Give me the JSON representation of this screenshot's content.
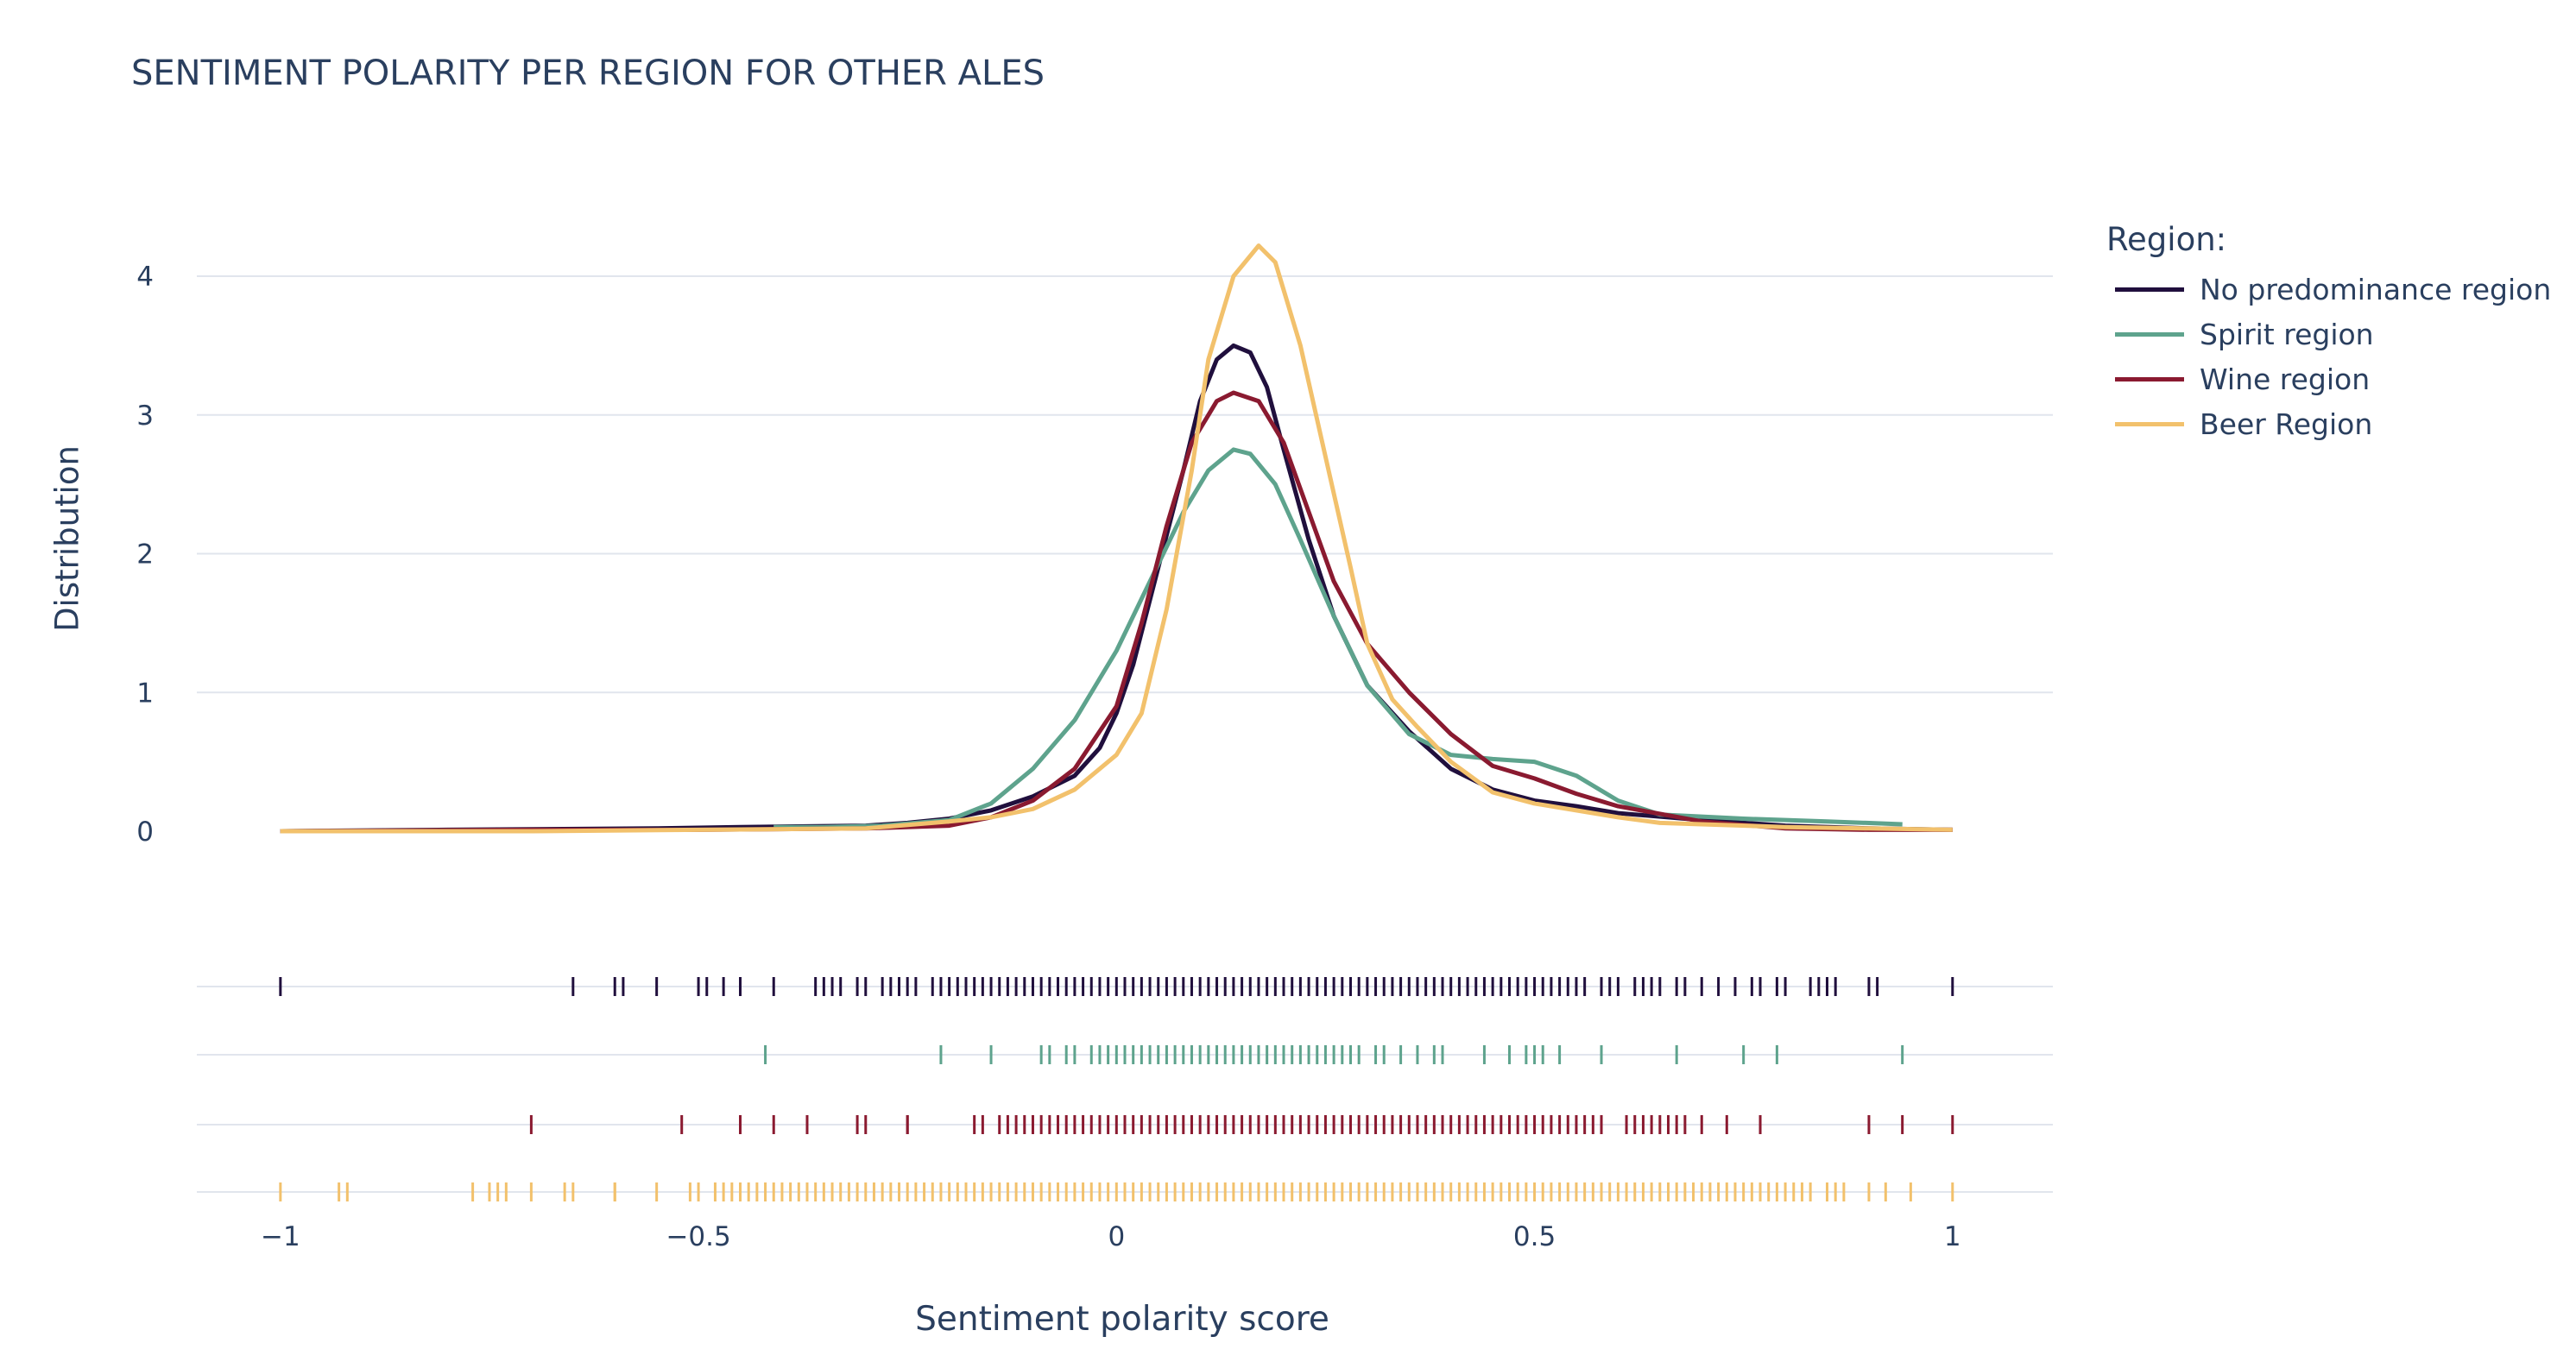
{
  "chart_data": {
    "type": "line",
    "title": "SENTIMENT POLARITY PER REGION FOR OTHER ALES",
    "xlabel": "Sentiment polarity score",
    "ylabel": "Distribution",
    "xlim": [
      -1.1,
      1.12
    ],
    "ylim": [
      -0.45,
      4.4
    ],
    "x_ticks": [
      -1,
      -0.5,
      0,
      0.5,
      1
    ],
    "x_tick_labels": [
      "−1",
      "−0.5",
      "0",
      "0.5",
      "1"
    ],
    "y_ticks": [
      0,
      1,
      2,
      3,
      4
    ],
    "y_tick_labels": [
      "0",
      "1",
      "2",
      "3",
      "4"
    ],
    "grid": true,
    "legend_title": "Region:",
    "legend_position": "top-right",
    "series": [
      {
        "name": "No predominance region",
        "color": "#200f3d",
        "points": [
          [
            -1,
            0.0
          ],
          [
            -0.8,
            0.01
          ],
          [
            -0.55,
            0.02
          ],
          [
            -0.45,
            0.03
          ],
          [
            -0.3,
            0.04
          ],
          [
            -0.25,
            0.06
          ],
          [
            -0.2,
            0.09
          ],
          [
            -0.15,
            0.15
          ],
          [
            -0.1,
            0.25
          ],
          [
            -0.05,
            0.4
          ],
          [
            -0.02,
            0.6
          ],
          [
            0,
            0.85
          ],
          [
            0.02,
            1.2
          ],
          [
            0.05,
            1.9
          ],
          [
            0.08,
            2.6
          ],
          [
            0.1,
            3.1
          ],
          [
            0.12,
            3.4
          ],
          [
            0.14,
            3.5
          ],
          [
            0.16,
            3.45
          ],
          [
            0.18,
            3.2
          ],
          [
            0.2,
            2.75
          ],
          [
            0.23,
            2.1
          ],
          [
            0.26,
            1.55
          ],
          [
            0.3,
            1.05
          ],
          [
            0.35,
            0.72
          ],
          [
            0.4,
            0.45
          ],
          [
            0.45,
            0.3
          ],
          [
            0.5,
            0.22
          ],
          [
            0.55,
            0.18
          ],
          [
            0.6,
            0.13
          ],
          [
            0.7,
            0.08
          ],
          [
            0.8,
            0.04
          ],
          [
            0.9,
            0.02
          ],
          [
            1,
            0.01
          ]
        ]
      },
      {
        "name": "Spirit region",
        "color": "#5ea38d",
        "points": [
          [
            -0.41,
            0.03
          ],
          [
            -0.35,
            0.03
          ],
          [
            -0.28,
            0.04
          ],
          [
            -0.2,
            0.08
          ],
          [
            -0.15,
            0.2
          ],
          [
            -0.1,
            0.45
          ],
          [
            -0.05,
            0.8
          ],
          [
            0,
            1.3
          ],
          [
            0.04,
            1.8
          ],
          [
            0.08,
            2.3
          ],
          [
            0.11,
            2.6
          ],
          [
            0.14,
            2.75
          ],
          [
            0.16,
            2.72
          ],
          [
            0.19,
            2.5
          ],
          [
            0.22,
            2.1
          ],
          [
            0.26,
            1.55
          ],
          [
            0.3,
            1.05
          ],
          [
            0.35,
            0.7
          ],
          [
            0.4,
            0.55
          ],
          [
            0.45,
            0.52
          ],
          [
            0.5,
            0.5
          ],
          [
            0.55,
            0.4
          ],
          [
            0.6,
            0.22
          ],
          [
            0.65,
            0.12
          ],
          [
            0.75,
            0.09
          ],
          [
            0.85,
            0.07
          ],
          [
            0.94,
            0.05
          ]
        ]
      },
      {
        "name": "Wine region",
        "color": "#8a1a30",
        "points": [
          [
            -1,
            0.0
          ],
          [
            -0.7,
            0.01
          ],
          [
            -0.5,
            0.01
          ],
          [
            -0.3,
            0.02
          ],
          [
            -0.2,
            0.04
          ],
          [
            -0.15,
            0.1
          ],
          [
            -0.1,
            0.22
          ],
          [
            -0.05,
            0.45
          ],
          [
            0,
            0.9
          ],
          [
            0.03,
            1.5
          ],
          [
            0.06,
            2.2
          ],
          [
            0.09,
            2.8
          ],
          [
            0.12,
            3.1
          ],
          [
            0.14,
            3.16
          ],
          [
            0.17,
            3.1
          ],
          [
            0.2,
            2.8
          ],
          [
            0.23,
            2.3
          ],
          [
            0.26,
            1.8
          ],
          [
            0.3,
            1.35
          ],
          [
            0.35,
            1.0
          ],
          [
            0.4,
            0.7
          ],
          [
            0.45,
            0.47
          ],
          [
            0.5,
            0.38
          ],
          [
            0.55,
            0.27
          ],
          [
            0.6,
            0.18
          ],
          [
            0.7,
            0.07
          ],
          [
            0.8,
            0.02
          ],
          [
            0.9,
            0.01
          ],
          [
            1,
            0.01
          ]
        ]
      },
      {
        "name": "Beer Region",
        "color": "#f2c16c",
        "points": [
          [
            -1,
            0.0
          ],
          [
            -0.7,
            0.0
          ],
          [
            -0.5,
            0.01
          ],
          [
            -0.3,
            0.02
          ],
          [
            -0.2,
            0.07
          ],
          [
            -0.15,
            0.1
          ],
          [
            -0.1,
            0.16
          ],
          [
            -0.05,
            0.3
          ],
          [
            0,
            0.55
          ],
          [
            0.03,
            0.85
          ],
          [
            0.06,
            1.6
          ],
          [
            0.09,
            2.6
          ],
          [
            0.11,
            3.4
          ],
          [
            0.14,
            4.0
          ],
          [
            0.17,
            4.22
          ],
          [
            0.19,
            4.1
          ],
          [
            0.22,
            3.5
          ],
          [
            0.25,
            2.7
          ],
          [
            0.28,
            1.9
          ],
          [
            0.3,
            1.35
          ],
          [
            0.33,
            0.95
          ],
          [
            0.36,
            0.75
          ],
          [
            0.4,
            0.5
          ],
          [
            0.45,
            0.28
          ],
          [
            0.5,
            0.2
          ],
          [
            0.55,
            0.15
          ],
          [
            0.6,
            0.1
          ],
          [
            0.65,
            0.06
          ],
          [
            0.7,
            0.05
          ],
          [
            0.8,
            0.03
          ],
          [
            0.9,
            0.02
          ],
          [
            1,
            0.01
          ]
        ]
      }
    ]
  },
  "rug_ticks": {
    "No predominance region": [
      -1,
      -0.65,
      -0.6,
      -0.59,
      -0.55,
      -0.5,
      -0.49,
      -0.47,
      -0.45,
      -0.41,
      -0.36,
      -0.35,
      -0.34,
      -0.33,
      -0.31,
      -0.3,
      -0.28,
      -0.27,
      -0.26,
      -0.25,
      -0.24,
      -0.22,
      -0.21,
      -0.2,
      -0.19,
      -0.18,
      -0.17,
      -0.16,
      -0.15,
      -0.14,
      -0.13,
      -0.12,
      -0.11,
      -0.1,
      -0.09,
      -0.08,
      -0.07,
      -0.06,
      -0.05,
      -0.04,
      -0.03,
      -0.02,
      -0.01,
      0,
      0.01,
      0.02,
      0.03,
      0.04,
      0.05,
      0.06,
      0.07,
      0.08,
      0.09,
      0.1,
      0.11,
      0.12,
      0.13,
      0.14,
      0.15,
      0.16,
      0.17,
      0.18,
      0.19,
      0.2,
      0.21,
      0.22,
      0.23,
      0.24,
      0.25,
      0.26,
      0.27,
      0.28,
      0.29,
      0.3,
      0.31,
      0.32,
      0.33,
      0.34,
      0.35,
      0.36,
      0.37,
      0.38,
      0.39,
      0.4,
      0.41,
      0.42,
      0.43,
      0.44,
      0.45,
      0.46,
      0.47,
      0.48,
      0.49,
      0.5,
      0.51,
      0.52,
      0.53,
      0.54,
      0.55,
      0.56,
      0.58,
      0.59,
      0.6,
      0.62,
      0.63,
      0.64,
      0.65,
      0.67,
      0.68,
      0.7,
      0.72,
      0.74,
      0.76,
      0.77,
      0.79,
      0.8,
      0.83,
      0.84,
      0.85,
      0.86,
      0.9,
      0.91,
      1
    ],
    "Spirit region": [
      -0.42,
      -0.21,
      -0.15,
      -0.09,
      -0.08,
      -0.06,
      -0.05,
      -0.03,
      -0.02,
      -0.01,
      0,
      0.01,
      0.02,
      0.03,
      0.04,
      0.05,
      0.06,
      0.07,
      0.08,
      0.09,
      0.1,
      0.11,
      0.12,
      0.13,
      0.14,
      0.15,
      0.16,
      0.17,
      0.18,
      0.19,
      0.2,
      0.21,
      0.22,
      0.23,
      0.24,
      0.25,
      0.26,
      0.27,
      0.28,
      0.29,
      0.31,
      0.32,
      0.34,
      0.36,
      0.38,
      0.39,
      0.44,
      0.47,
      0.49,
      0.5,
      0.51,
      0.53,
      0.58,
      0.67,
      0.75,
      0.79,
      0.94
    ],
    "Wine region": [
      -0.7,
      -0.52,
      -0.45,
      -0.41,
      -0.37,
      -0.31,
      -0.3,
      -0.25,
      -0.25,
      -0.17,
      -0.16,
      -0.14,
      -0.13,
      -0.12,
      -0.11,
      -0.1,
      -0.09,
      -0.08,
      -0.07,
      -0.06,
      -0.05,
      -0.04,
      -0.03,
      -0.02,
      -0.01,
      0,
      0.01,
      0.02,
      0.03,
      0.04,
      0.05,
      0.06,
      0.07,
      0.08,
      0.09,
      0.1,
      0.11,
      0.12,
      0.13,
      0.14,
      0.15,
      0.16,
      0.17,
      0.18,
      0.19,
      0.2,
      0.21,
      0.22,
      0.23,
      0.24,
      0.25,
      0.26,
      0.27,
      0.28,
      0.29,
      0.3,
      0.31,
      0.32,
      0.33,
      0.34,
      0.35,
      0.36,
      0.37,
      0.38,
      0.39,
      0.4,
      0.41,
      0.42,
      0.43,
      0.44,
      0.45,
      0.46,
      0.47,
      0.48,
      0.49,
      0.5,
      0.51,
      0.52,
      0.53,
      0.54,
      0.55,
      0.56,
      0.57,
      0.58,
      0.61,
      0.62,
      0.63,
      0.64,
      0.65,
      0.66,
      0.67,
      0.68,
      0.7,
      0.73,
      0.77,
      0.9,
      0.94,
      1
    ],
    "Beer Region": [
      -1,
      -0.93,
      -0.92,
      -0.77,
      -0.75,
      -0.74,
      -0.73,
      -0.7,
      -0.66,
      -0.65,
      -0.6,
      -0.6,
      -0.55,
      -0.51,
      -0.5,
      -0.48,
      -0.47,
      -0.46,
      -0.45,
      -0.44,
      -0.43,
      -0.42,
      -0.41,
      -0.4,
      -0.39,
      -0.38,
      -0.37,
      -0.36,
      -0.35,
      -0.34,
      -0.33,
      -0.32,
      -0.31,
      -0.3,
      -0.29,
      -0.28,
      -0.27,
      -0.26,
      -0.25,
      -0.24,
      -0.23,
      -0.22,
      -0.21,
      -0.2,
      -0.19,
      -0.18,
      -0.17,
      -0.16,
      -0.15,
      -0.14,
      -0.13,
      -0.12,
      -0.11,
      -0.1,
      -0.09,
      -0.08,
      -0.07,
      -0.06,
      -0.05,
      -0.04,
      -0.03,
      -0.02,
      -0.01,
      0,
      0.01,
      0.02,
      0.03,
      0.04,
      0.05,
      0.06,
      0.07,
      0.08,
      0.09,
      0.1,
      0.11,
      0.12,
      0.13,
      0.14,
      0.15,
      0.16,
      0.17,
      0.18,
      0.19,
      0.2,
      0.21,
      0.22,
      0.23,
      0.24,
      0.25,
      0.26,
      0.27,
      0.28,
      0.29,
      0.3,
      0.31,
      0.32,
      0.33,
      0.34,
      0.35,
      0.36,
      0.37,
      0.38,
      0.39,
      0.4,
      0.41,
      0.42,
      0.43,
      0.44,
      0.45,
      0.46,
      0.47,
      0.48,
      0.49,
      0.5,
      0.51,
      0.52,
      0.53,
      0.54,
      0.55,
      0.56,
      0.57,
      0.58,
      0.59,
      0.6,
      0.61,
      0.62,
      0.63,
      0.64,
      0.65,
      0.66,
      0.67,
      0.68,
      0.69,
      0.7,
      0.71,
      0.72,
      0.73,
      0.74,
      0.75,
      0.76,
      0.77,
      0.78,
      0.79,
      0.8,
      0.81,
      0.82,
      0.83,
      0.85,
      0.86,
      0.87,
      0.9,
      0.92,
      0.95,
      1
    ]
  }
}
